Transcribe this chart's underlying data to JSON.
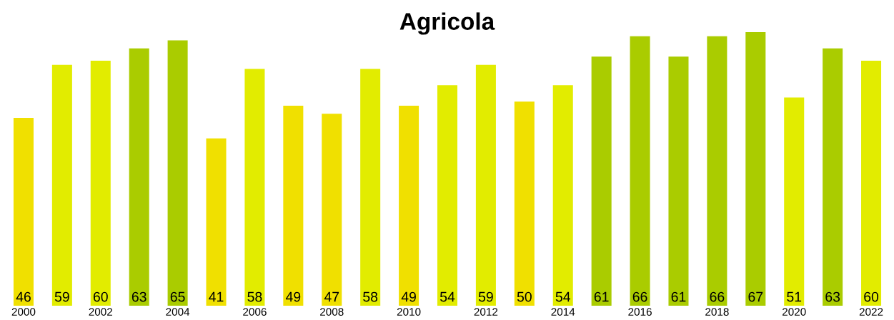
{
  "chart_data": {
    "type": "bar",
    "title": "Agricola",
    "categories": [
      "2000",
      null,
      "2002",
      null,
      "2004",
      null,
      "2006",
      null,
      "2008",
      null,
      "2010",
      null,
      "2012",
      null,
      "2014",
      null,
      "2016",
      null,
      "2018",
      null,
      "2020",
      null,
      "2022"
    ],
    "values": [
      46,
      59,
      60,
      63,
      65,
      41,
      58,
      49,
      47,
      58,
      49,
      54,
      59,
      50,
      54,
      61,
      66,
      61,
      66,
      67,
      51,
      63,
      60
    ],
    "colors": [
      "#f0e000",
      "#e2ec00",
      "#e2ec00",
      "#aacc00",
      "#aacc00",
      "#f0e000",
      "#e2ec00",
      "#f0e000",
      "#f0e000",
      "#e2ec00",
      "#f0e000",
      "#e2ec00",
      "#e2ec00",
      "#f0e000",
      "#e2ec00",
      "#aacc00",
      "#aacc00",
      "#aacc00",
      "#aacc00",
      "#aacc00",
      "#e2ec00",
      "#aacc00",
      "#e2ec00"
    ],
    "data_labels": true,
    "grid": false,
    "legend": false
  }
}
